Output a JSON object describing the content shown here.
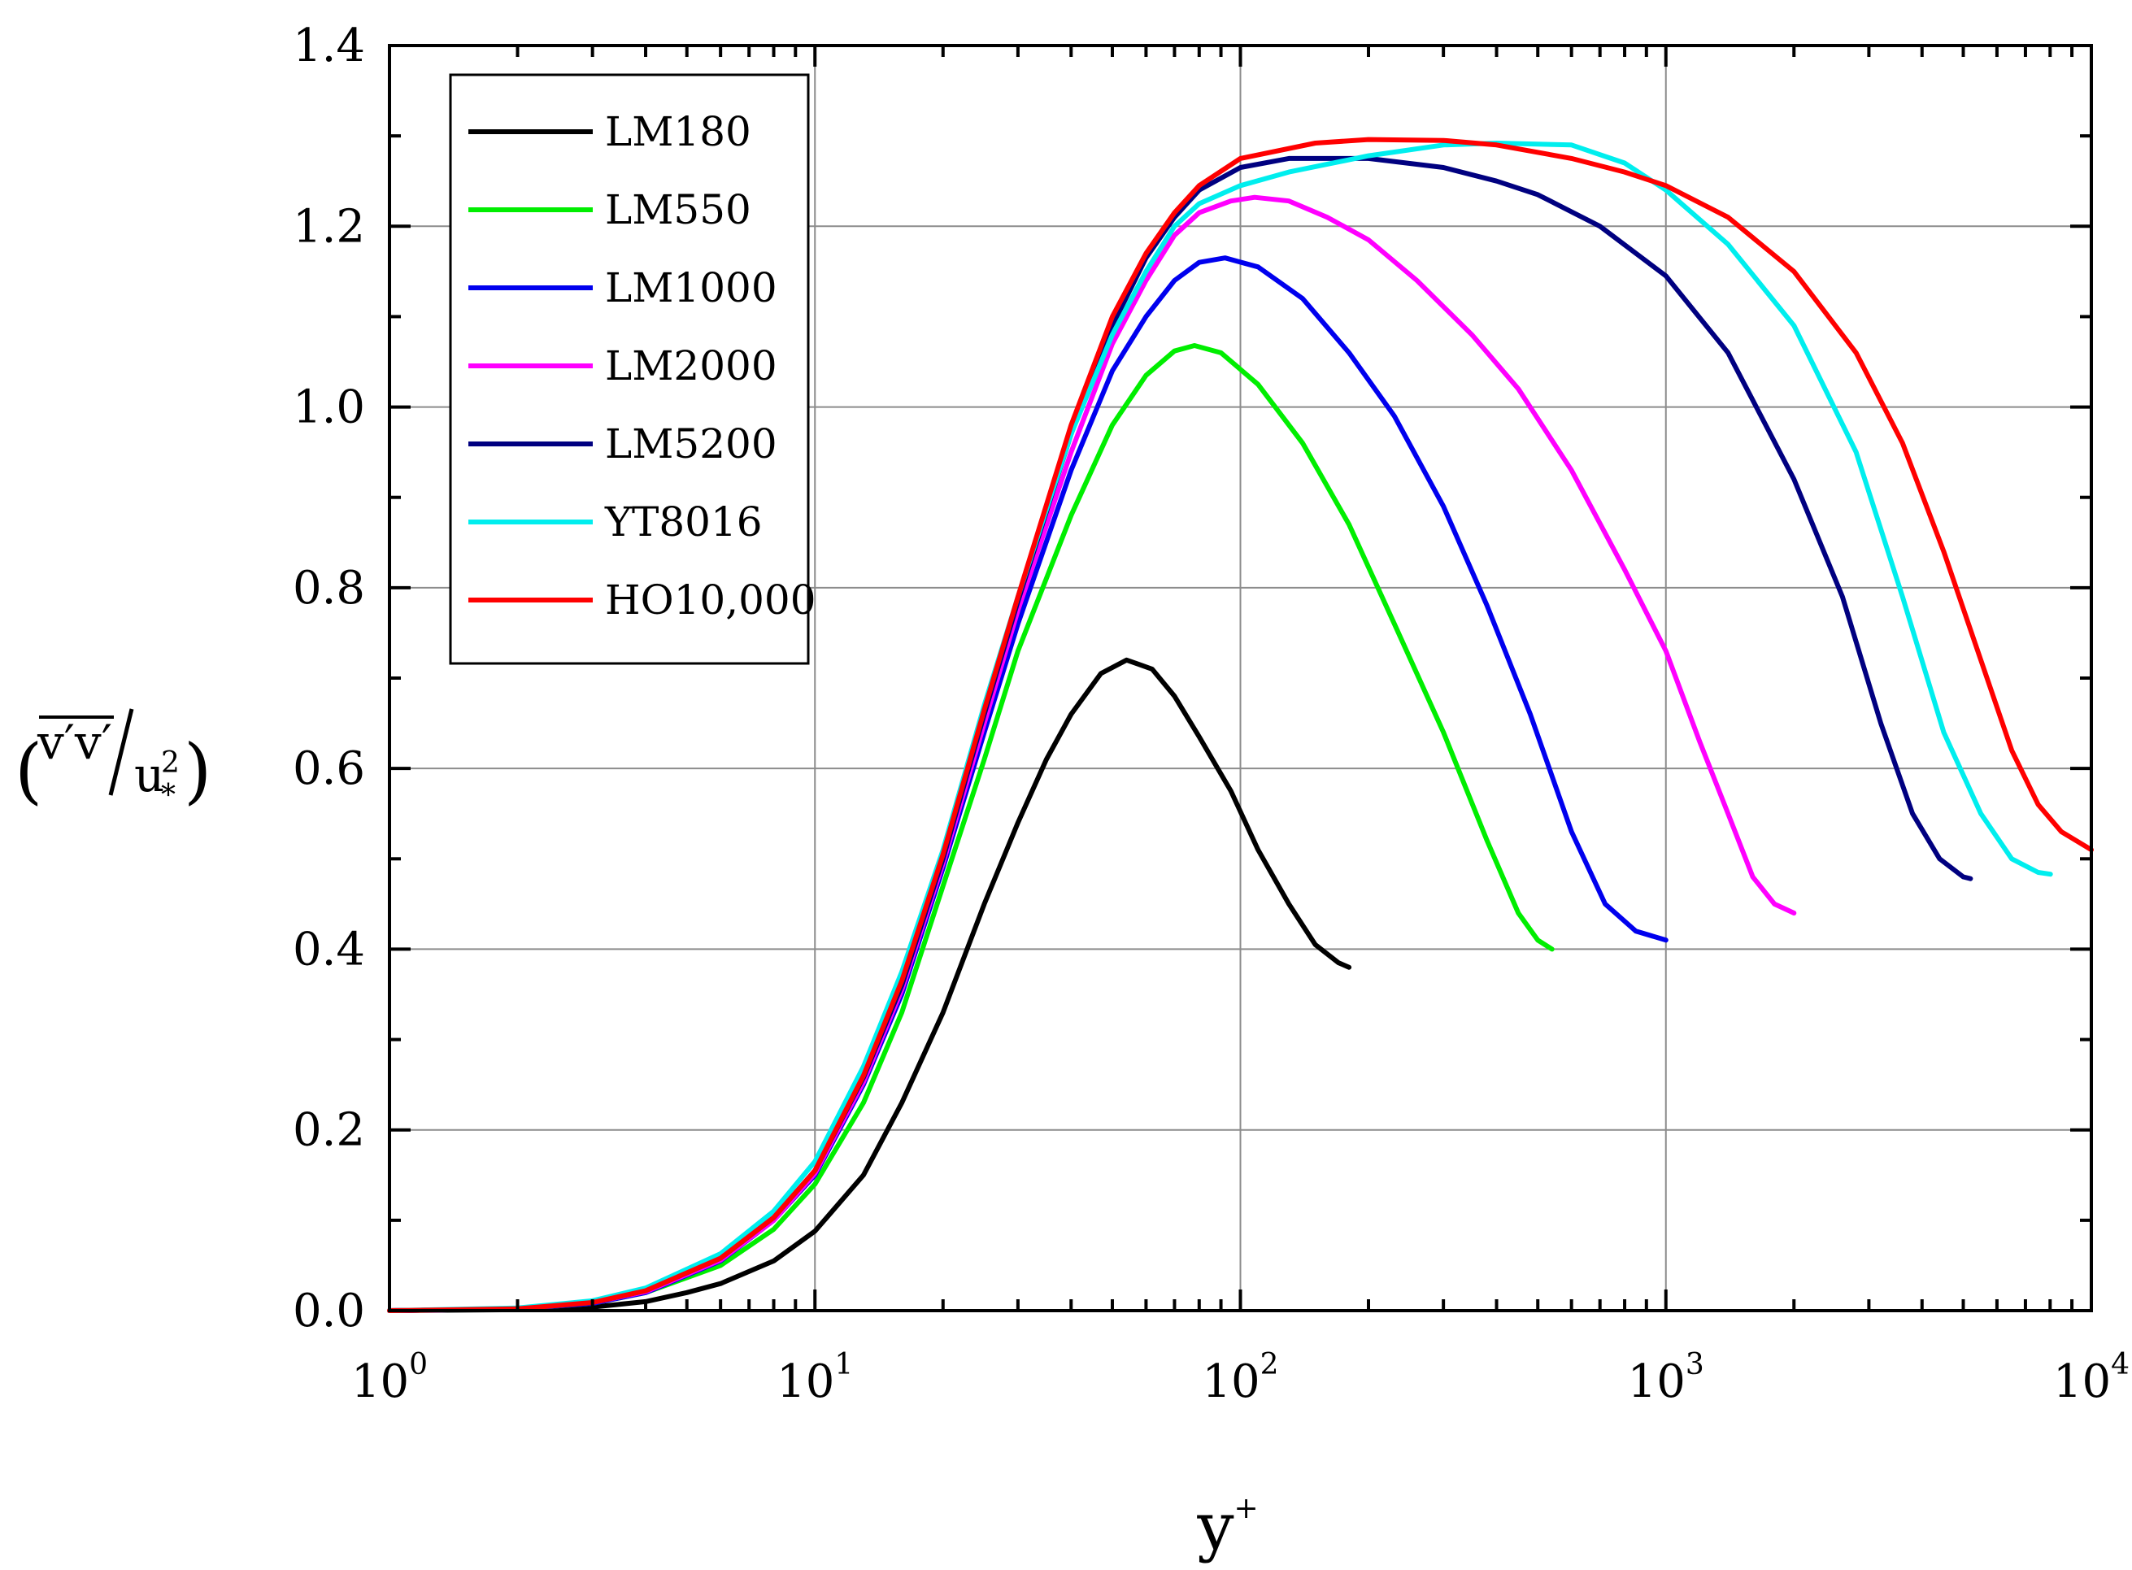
{
  "chart_data": {
    "type": "line",
    "xscale": "log",
    "xlim": [
      1,
      10000
    ],
    "ylim": [
      0.0,
      1.4
    ],
    "grid": true,
    "legend_position": "top-left",
    "xlabel": {
      "base": "y",
      "sup": "+"
    },
    "ylabel": {
      "numerator": "v′v′",
      "denominator_base": "u",
      "denominator_sup": "2",
      "denominator_sub": "*"
    },
    "x_tick_labels": [
      {
        "base": "10",
        "exp": "0",
        "value": 1
      },
      {
        "base": "10",
        "exp": "1",
        "value": 10
      },
      {
        "base": "10",
        "exp": "2",
        "value": 100
      },
      {
        "base": "10",
        "exp": "3",
        "value": 1000
      },
      {
        "base": "10",
        "exp": "4",
        "value": 10000
      }
    ],
    "y_tick_labels": [
      "0.0",
      "0.2",
      "0.4",
      "0.6",
      "0.8",
      "1.0",
      "1.2",
      "1.4"
    ],
    "y_tick_values": [
      0.0,
      0.2,
      0.4,
      0.6,
      0.8,
      1.0,
      1.2,
      1.4
    ],
    "series": [
      {
        "name": "LM180",
        "color": "#000000",
        "points": [
          [
            1,
            0
          ],
          [
            2,
            0.001
          ],
          [
            3,
            0.004
          ],
          [
            4,
            0.01
          ],
          [
            5,
            0.02
          ],
          [
            6,
            0.03
          ],
          [
            8,
            0.055
          ],
          [
            10,
            0.088
          ],
          [
            13,
            0.15
          ],
          [
            16,
            0.23
          ],
          [
            20,
            0.33
          ],
          [
            25,
            0.45
          ],
          [
            30,
            0.54
          ],
          [
            35,
            0.61
          ],
          [
            40,
            0.66
          ],
          [
            47,
            0.705
          ],
          [
            54,
            0.72
          ],
          [
            62,
            0.71
          ],
          [
            70,
            0.68
          ],
          [
            80,
            0.635
          ],
          [
            95,
            0.575
          ],
          [
            110,
            0.51
          ],
          [
            130,
            0.45
          ],
          [
            150,
            0.405
          ],
          [
            170,
            0.385
          ],
          [
            180,
            0.38
          ]
        ]
      },
      {
        "name": "LM550",
        "color": "#00ee00",
        "points": [
          [
            1,
            0
          ],
          [
            2,
            0.002
          ],
          [
            3,
            0.008
          ],
          [
            4,
            0.02
          ],
          [
            6,
            0.05
          ],
          [
            8,
            0.09
          ],
          [
            10,
            0.14
          ],
          [
            13,
            0.23
          ],
          [
            16,
            0.33
          ],
          [
            20,
            0.47
          ],
          [
            25,
            0.61
          ],
          [
            30,
            0.73
          ],
          [
            40,
            0.88
          ],
          [
            50,
            0.98
          ],
          [
            60,
            1.035
          ],
          [
            70,
            1.062
          ],
          [
            78,
            1.068
          ],
          [
            90,
            1.06
          ],
          [
            110,
            1.025
          ],
          [
            140,
            0.96
          ],
          [
            180,
            0.87
          ],
          [
            230,
            0.76
          ],
          [
            300,
            0.64
          ],
          [
            380,
            0.52
          ],
          [
            450,
            0.44
          ],
          [
            500,
            0.41
          ],
          [
            540,
            0.4
          ]
        ]
      },
      {
        "name": "LM1000",
        "color": "#0000ee",
        "points": [
          [
            1,
            0
          ],
          [
            2,
            0.002
          ],
          [
            3,
            0.008
          ],
          [
            4,
            0.02
          ],
          [
            6,
            0.055
          ],
          [
            8,
            0.1
          ],
          [
            10,
            0.15
          ],
          [
            13,
            0.25
          ],
          [
            16,
            0.35
          ],
          [
            20,
            0.49
          ],
          [
            25,
            0.64
          ],
          [
            30,
            0.76
          ],
          [
            40,
            0.93
          ],
          [
            50,
            1.04
          ],
          [
            60,
            1.1
          ],
          [
            70,
            1.14
          ],
          [
            80,
            1.16
          ],
          [
            92,
            1.165
          ],
          [
            110,
            1.155
          ],
          [
            140,
            1.12
          ],
          [
            180,
            1.06
          ],
          [
            230,
            0.99
          ],
          [
            300,
            0.89
          ],
          [
            380,
            0.78
          ],
          [
            480,
            0.66
          ],
          [
            600,
            0.53
          ],
          [
            720,
            0.45
          ],
          [
            850,
            0.42
          ],
          [
            1000,
            0.41
          ]
        ]
      },
      {
        "name": "LM2000",
        "color": "#ff00ff",
        "points": [
          [
            1,
            0
          ],
          [
            2,
            0.002
          ],
          [
            3,
            0.009
          ],
          [
            4,
            0.021
          ],
          [
            6,
            0.056
          ],
          [
            8,
            0.1
          ],
          [
            10,
            0.152
          ],
          [
            13,
            0.253
          ],
          [
            16,
            0.355
          ],
          [
            20,
            0.495
          ],
          [
            25,
            0.65
          ],
          [
            30,
            0.775
          ],
          [
            40,
            0.95
          ],
          [
            50,
            1.07
          ],
          [
            60,
            1.14
          ],
          [
            70,
            1.19
          ],
          [
            80,
            1.215
          ],
          [
            95,
            1.228
          ],
          [
            108,
            1.232
          ],
          [
            130,
            1.228
          ],
          [
            160,
            1.21
          ],
          [
            200,
            1.185
          ],
          [
            260,
            1.14
          ],
          [
            350,
            1.08
          ],
          [
            450,
            1.02
          ],
          [
            600,
            0.93
          ],
          [
            800,
            0.82
          ],
          [
            1000,
            0.73
          ],
          [
            1200,
            0.63
          ],
          [
            1400,
            0.55
          ],
          [
            1600,
            0.48
          ],
          [
            1800,
            0.45
          ],
          [
            2000,
            0.44
          ]
        ]
      },
      {
        "name": "LM5200",
        "color": "#000080",
        "points": [
          [
            1,
            0
          ],
          [
            2,
            0.002
          ],
          [
            3,
            0.009
          ],
          [
            4,
            0.022
          ],
          [
            6,
            0.058
          ],
          [
            8,
            0.103
          ],
          [
            10,
            0.155
          ],
          [
            13,
            0.258
          ],
          [
            16,
            0.36
          ],
          [
            20,
            0.5
          ],
          [
            25,
            0.66
          ],
          [
            30,
            0.785
          ],
          [
            40,
            0.97
          ],
          [
            50,
            1.09
          ],
          [
            60,
            1.165
          ],
          [
            70,
            1.21
          ],
          [
            80,
            1.24
          ],
          [
            100,
            1.265
          ],
          [
            130,
            1.275
          ],
          [
            200,
            1.275
          ],
          [
            300,
            1.265
          ],
          [
            400,
            1.25
          ],
          [
            500,
            1.235
          ],
          [
            700,
            1.2
          ],
          [
            1000,
            1.145
          ],
          [
            1400,
            1.06
          ],
          [
            2000,
            0.92
          ],
          [
            2600,
            0.79
          ],
          [
            3200,
            0.65
          ],
          [
            3800,
            0.55
          ],
          [
            4400,
            0.5
          ],
          [
            5000,
            0.48
          ],
          [
            5200,
            0.478
          ]
        ]
      },
      {
        "name": "YT8016",
        "color": "#00eeee",
        "points": [
          [
            1,
            0
          ],
          [
            2,
            0.003
          ],
          [
            3,
            0.011
          ],
          [
            4,
            0.025
          ],
          [
            6,
            0.063
          ],
          [
            8,
            0.11
          ],
          [
            10,
            0.165
          ],
          [
            13,
            0.27
          ],
          [
            16,
            0.375
          ],
          [
            20,
            0.51
          ],
          [
            25,
            0.67
          ],
          [
            30,
            0.79
          ],
          [
            40,
            0.97
          ],
          [
            50,
            1.08
          ],
          [
            60,
            1.15
          ],
          [
            70,
            1.2
          ],
          [
            80,
            1.225
          ],
          [
            100,
            1.245
          ],
          [
            130,
            1.26
          ],
          [
            200,
            1.278
          ],
          [
            300,
            1.29
          ],
          [
            400,
            1.292
          ],
          [
            600,
            1.29
          ],
          [
            800,
            1.27
          ],
          [
            1000,
            1.24
          ],
          [
            1400,
            1.18
          ],
          [
            2000,
            1.09
          ],
          [
            2800,
            0.95
          ],
          [
            3600,
            0.79
          ],
          [
            4500,
            0.64
          ],
          [
            5500,
            0.55
          ],
          [
            6500,
            0.5
          ],
          [
            7500,
            0.485
          ],
          [
            8016,
            0.483
          ]
        ]
      },
      {
        "name": "HO10,000",
        "color": "#ff0000",
        "points": [
          [
            1,
            0
          ],
          [
            2,
            0.002
          ],
          [
            3,
            0.009
          ],
          [
            4,
            0.022
          ],
          [
            6,
            0.058
          ],
          [
            8,
            0.103
          ],
          [
            10,
            0.155
          ],
          [
            13,
            0.26
          ],
          [
            16,
            0.365
          ],
          [
            20,
            0.505
          ],
          [
            25,
            0.665
          ],
          [
            30,
            0.79
          ],
          [
            40,
            0.98
          ],
          [
            50,
            1.1
          ],
          [
            60,
            1.17
          ],
          [
            70,
            1.215
          ],
          [
            80,
            1.245
          ],
          [
            100,
            1.275
          ],
          [
            150,
            1.292
          ],
          [
            200,
            1.296
          ],
          [
            300,
            1.295
          ],
          [
            400,
            1.29
          ],
          [
            600,
            1.275
          ],
          [
            800,
            1.26
          ],
          [
            1000,
            1.245
          ],
          [
            1400,
            1.21
          ],
          [
            2000,
            1.15
          ],
          [
            2800,
            1.06
          ],
          [
            3600,
            0.96
          ],
          [
            4500,
            0.84
          ],
          [
            5500,
            0.72
          ],
          [
            6500,
            0.62
          ],
          [
            7500,
            0.56
          ],
          [
            8500,
            0.53
          ],
          [
            10000,
            0.51
          ]
        ]
      }
    ]
  }
}
